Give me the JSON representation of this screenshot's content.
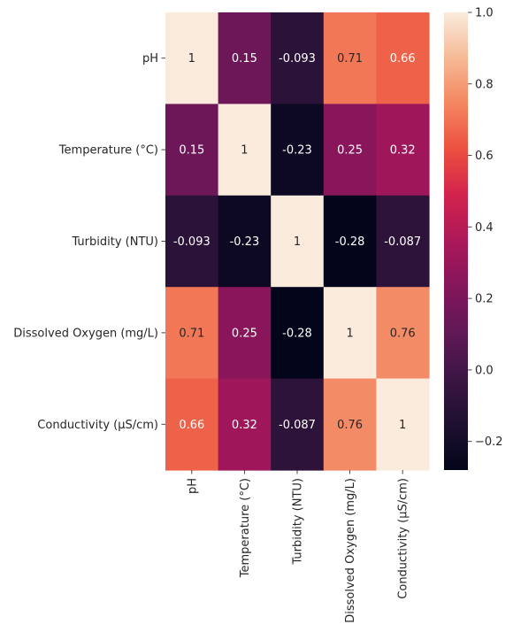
{
  "chart_data": {
    "type": "heatmap",
    "title": "",
    "xlabel": "",
    "ylabel": "",
    "categories": [
      "pH",
      "Temperature (°C)",
      "Turbidity (NTU)",
      "Dissolved Oxygen (mg/L)",
      "Conductivity (µS/cm)"
    ],
    "values": [
      [
        1,
        0.15,
        -0.093,
        0.71,
        0.66
      ],
      [
        0.15,
        1,
        -0.23,
        0.25,
        0.32
      ],
      [
        -0.093,
        -0.23,
        1,
        -0.28,
        -0.087
      ],
      [
        0.71,
        0.25,
        -0.28,
        1,
        0.76
      ],
      [
        0.66,
        0.32,
        -0.087,
        0.76,
        1
      ]
    ],
    "cell_labels": [
      [
        "1",
        "0.15",
        "-0.093",
        "0.71",
        "0.66"
      ],
      [
        "0.15",
        "1",
        "-0.23",
        "0.25",
        "0.32"
      ],
      [
        "-0.093",
        "-0.23",
        "1",
        "-0.28",
        "-0.087"
      ],
      [
        "0.71",
        "0.25",
        "-0.28",
        "1",
        "0.76"
      ],
      [
        "0.66",
        "0.32",
        "-0.087",
        "0.76",
        "1"
      ]
    ],
    "colorscale": "rocket",
    "zlim": [
      -0.28,
      1.0
    ],
    "colorbar_ticks": [
      -0.2,
      0.0,
      0.2,
      0.4,
      0.6,
      0.8,
      1.0
    ],
    "colorbar_tick_labels": [
      "−0.2",
      "0.0",
      "0.2",
      "0.4",
      "0.6",
      "0.8",
      "1.0"
    ]
  }
}
